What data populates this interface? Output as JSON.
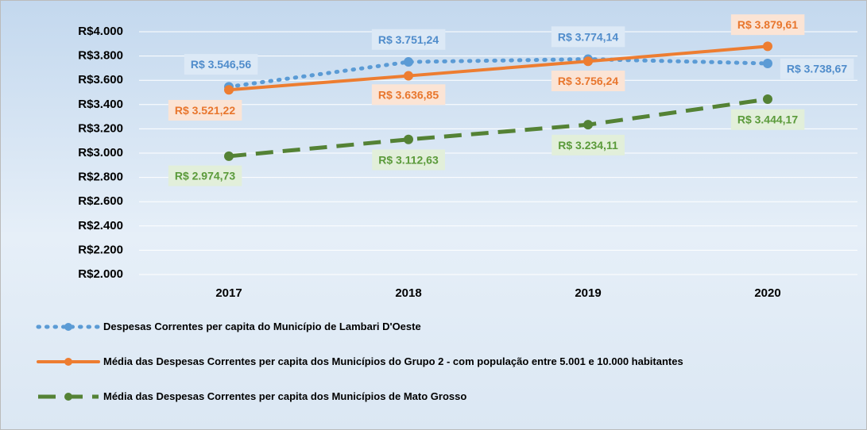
{
  "chart_data": {
    "type": "line",
    "categories": [
      "2017",
      "2018",
      "2019",
      "2020"
    ],
    "ylim": [
      2000,
      4000
    ],
    "yticks": [
      {
        "value": 2000,
        "label": "R$2.000"
      },
      {
        "value": 2200,
        "label": "R$2.200"
      },
      {
        "value": 2400,
        "label": "R$2.400"
      },
      {
        "value": 2600,
        "label": "R$2.600"
      },
      {
        "value": 2800,
        "label": "R$2.800"
      },
      {
        "value": 3000,
        "label": "R$3.000"
      },
      {
        "value": 3200,
        "label": "R$3.200"
      },
      {
        "value": 3400,
        "label": "R$3.400"
      },
      {
        "value": 3600,
        "label": "R$3.600"
      },
      {
        "value": 3800,
        "label": "R$3.800"
      },
      {
        "value": 4000,
        "label": "R$4.000"
      }
    ],
    "grid": true,
    "legend": "bottom",
    "series": [
      {
        "name": "Despesas Correntes  per capita do Município de Lambari D'Oeste",
        "color": "#5b9bd5",
        "dash": "dotted",
        "values": [
          3546.56,
          3751.24,
          3774.14,
          3738.67
        ],
        "value_labels": [
          "R$ 3.546,56",
          "R$ 3.751,24",
          "R$ 3.774,14",
          "R$ 3.738,67"
        ]
      },
      {
        "name": "Média das Despesas Correntes  per capita dos Municípios do Grupo 2 - com população entre 5.001 e 10.000 habitantes",
        "color": "#ed7d31",
        "dash": "solid",
        "values": [
          3521.22,
          3636.85,
          3756.24,
          3879.61
        ],
        "value_labels": [
          "R$ 3.521,22",
          "R$ 3.636,85",
          "R$ 3.756,24",
          "R$ 3.879,61"
        ]
      },
      {
        "name": "Média das Despesas Correntes per capita dos Municípios de Mato Grosso",
        "color": "#548235",
        "dash": "dashed",
        "values": [
          2974.73,
          3112.63,
          3234.11,
          3444.17
        ],
        "value_labels": [
          "R$ 2.974,73",
          "R$ 3.112,63",
          "R$ 3.234,11",
          "R$ 3.444,17"
        ]
      }
    ]
  }
}
